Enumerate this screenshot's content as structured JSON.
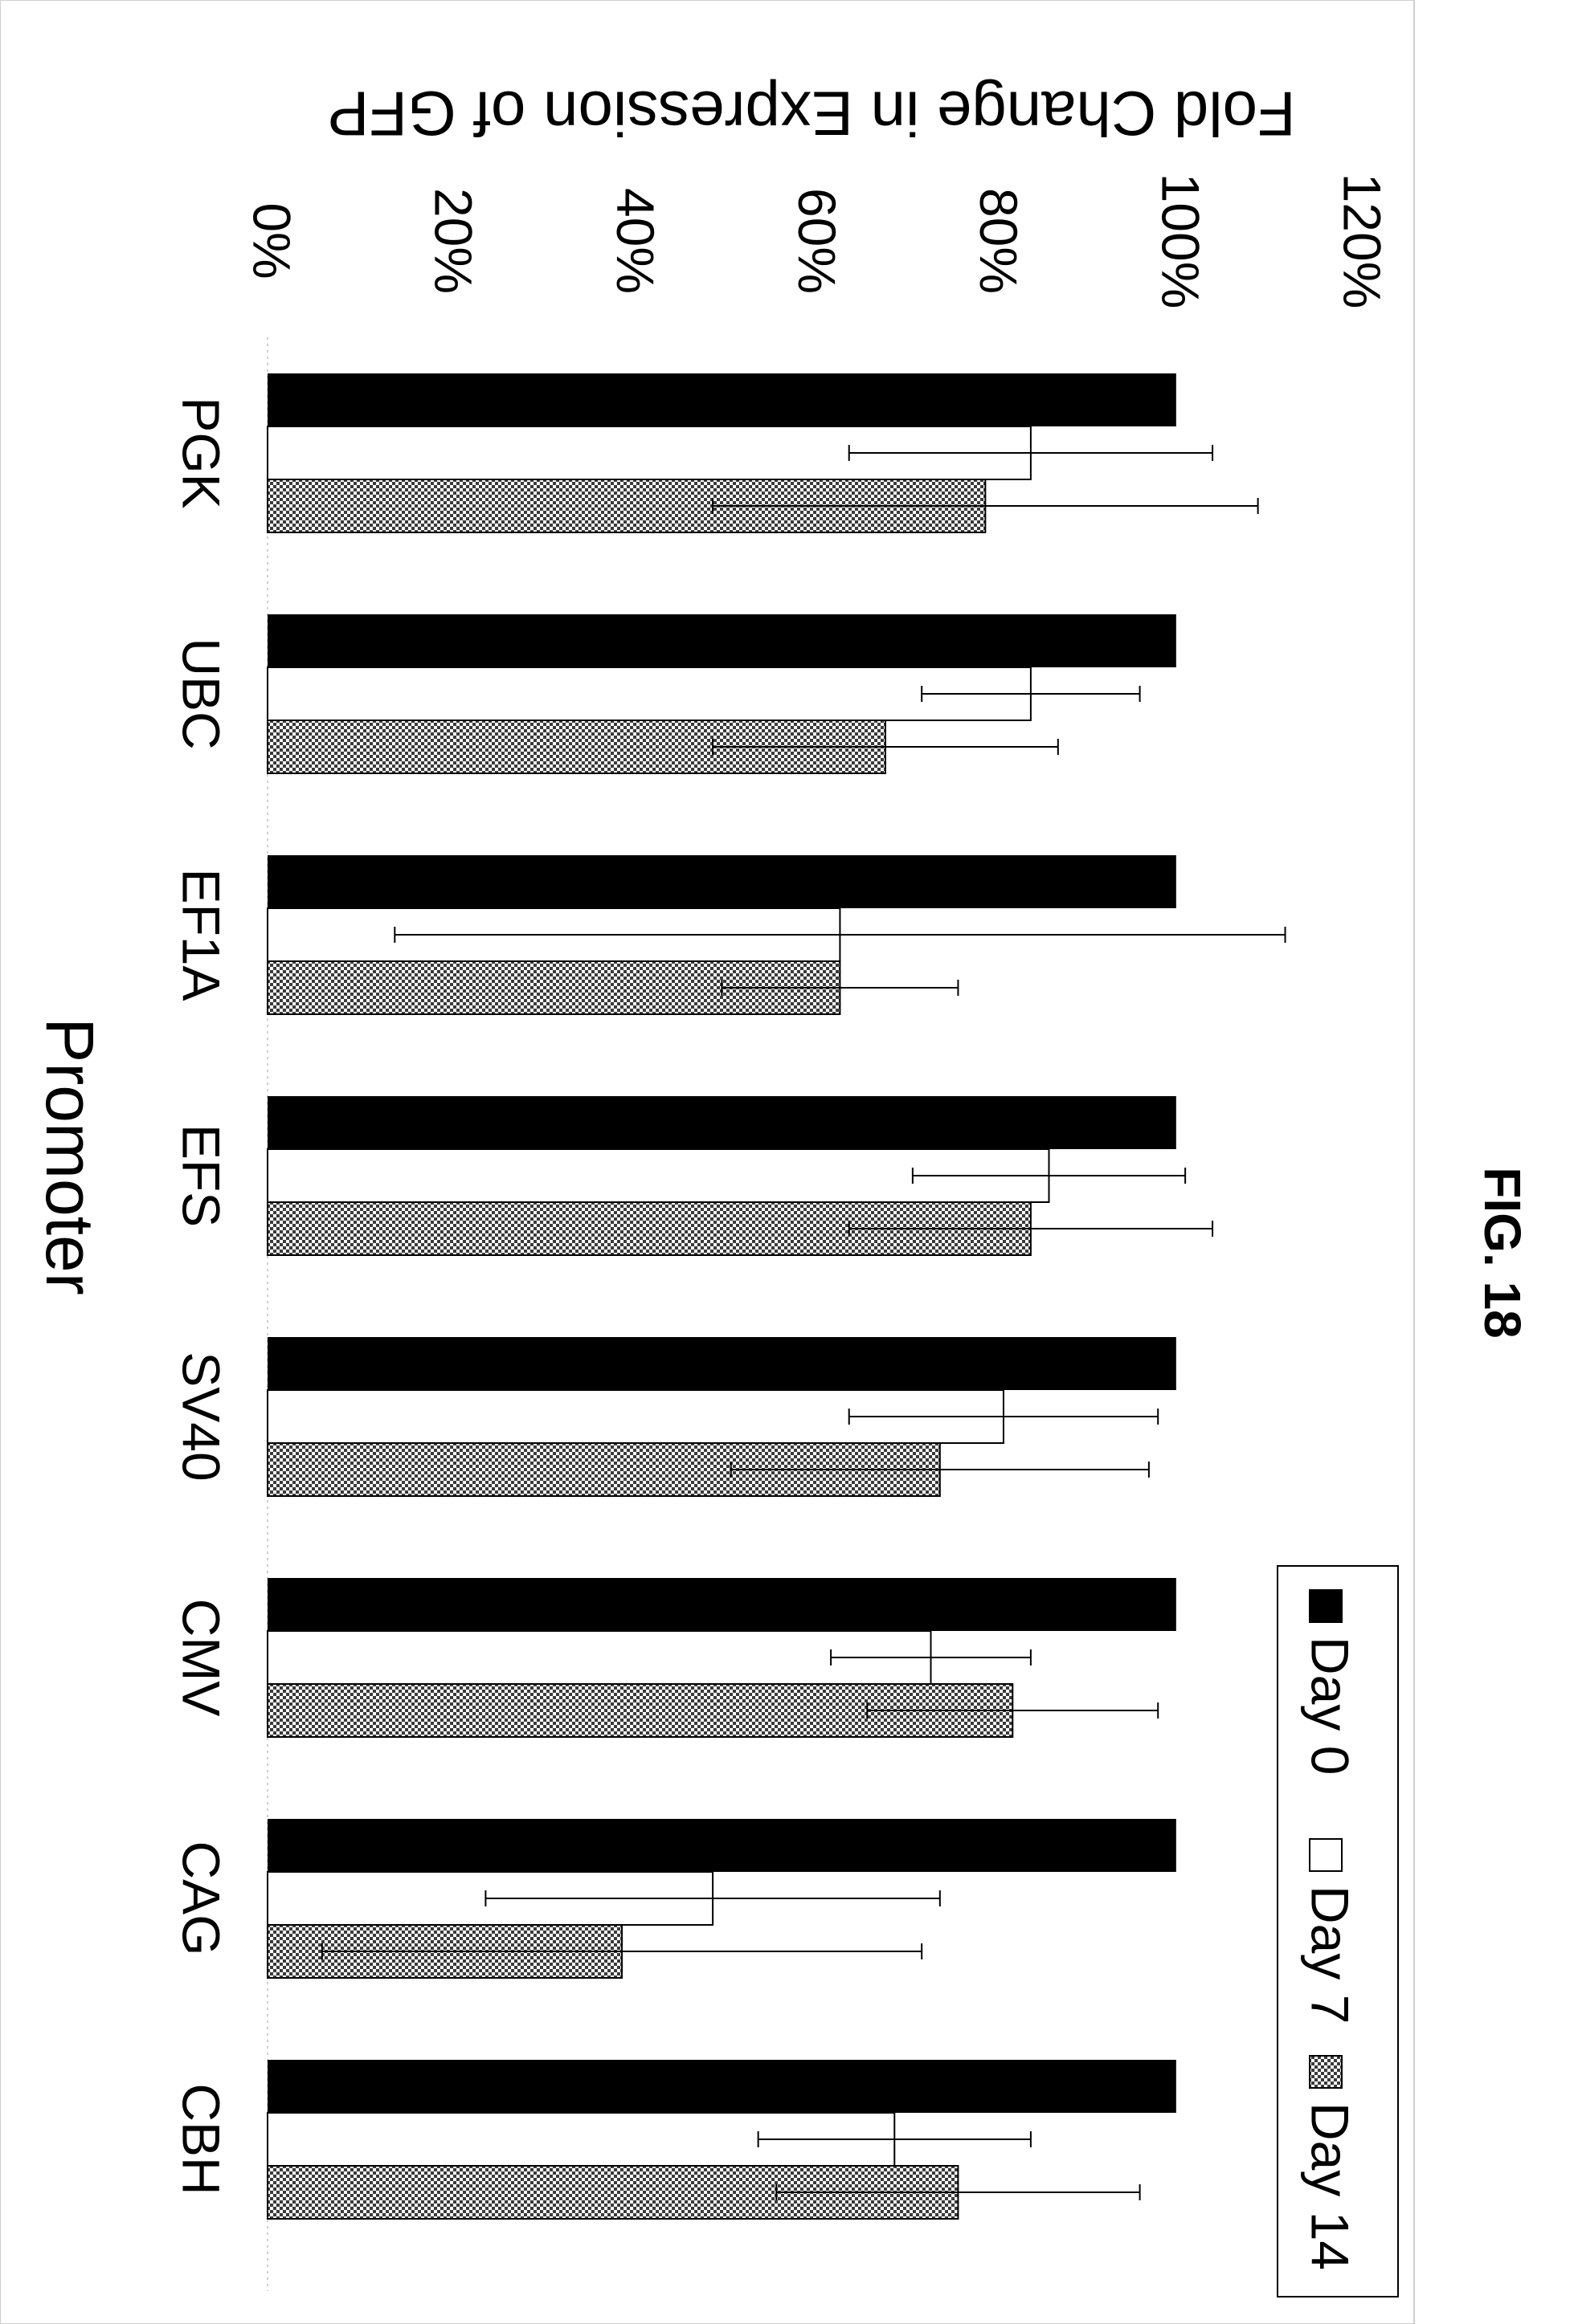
{
  "figure_label": "FIG. 18",
  "chart_data": {
    "type": "bar",
    "orientation": "horizontal bars, figure rotated 90°",
    "title": "Fold Change in Expression of GFP",
    "xlabel": "Promoter",
    "ylabel": "",
    "categories": [
      "PGK",
      "UBC",
      "EF1A",
      "EFS",
      "SV40",
      "CMV",
      "CAG",
      "CBH"
    ],
    "series": [
      {
        "name": "Day 0",
        "pattern": "solid",
        "color": "#000000",
        "values": [
          100,
          100,
          100,
          100,
          100,
          100,
          100,
          100
        ],
        "error": [
          0,
          0,
          0,
          0,
          0,
          0,
          0,
          0
        ]
      },
      {
        "name": "Day 7",
        "pattern": "white",
        "color": "#ffffff",
        "values": [
          84,
          84,
          63,
          86,
          81,
          73,
          49,
          69
        ],
        "error": [
          20,
          12,
          49,
          15,
          17,
          11,
          25,
          15
        ]
      },
      {
        "name": "Day 14",
        "pattern": "checker",
        "color": "#999999",
        "values": [
          79,
          68,
          63,
          84,
          74,
          82,
          39,
          76
        ],
        "error": [
          30,
          19,
          13,
          20,
          23,
          16,
          33,
          20
        ]
      }
    ],
    "yticks": [
      "0%",
      "20%",
      "40%",
      "60%",
      "80%",
      "100%",
      "120%"
    ],
    "ytick_values": [
      0,
      20,
      40,
      60,
      80,
      100,
      120
    ],
    "ylim": [
      0,
      120
    ],
    "grid": false,
    "legend_position": "right"
  }
}
